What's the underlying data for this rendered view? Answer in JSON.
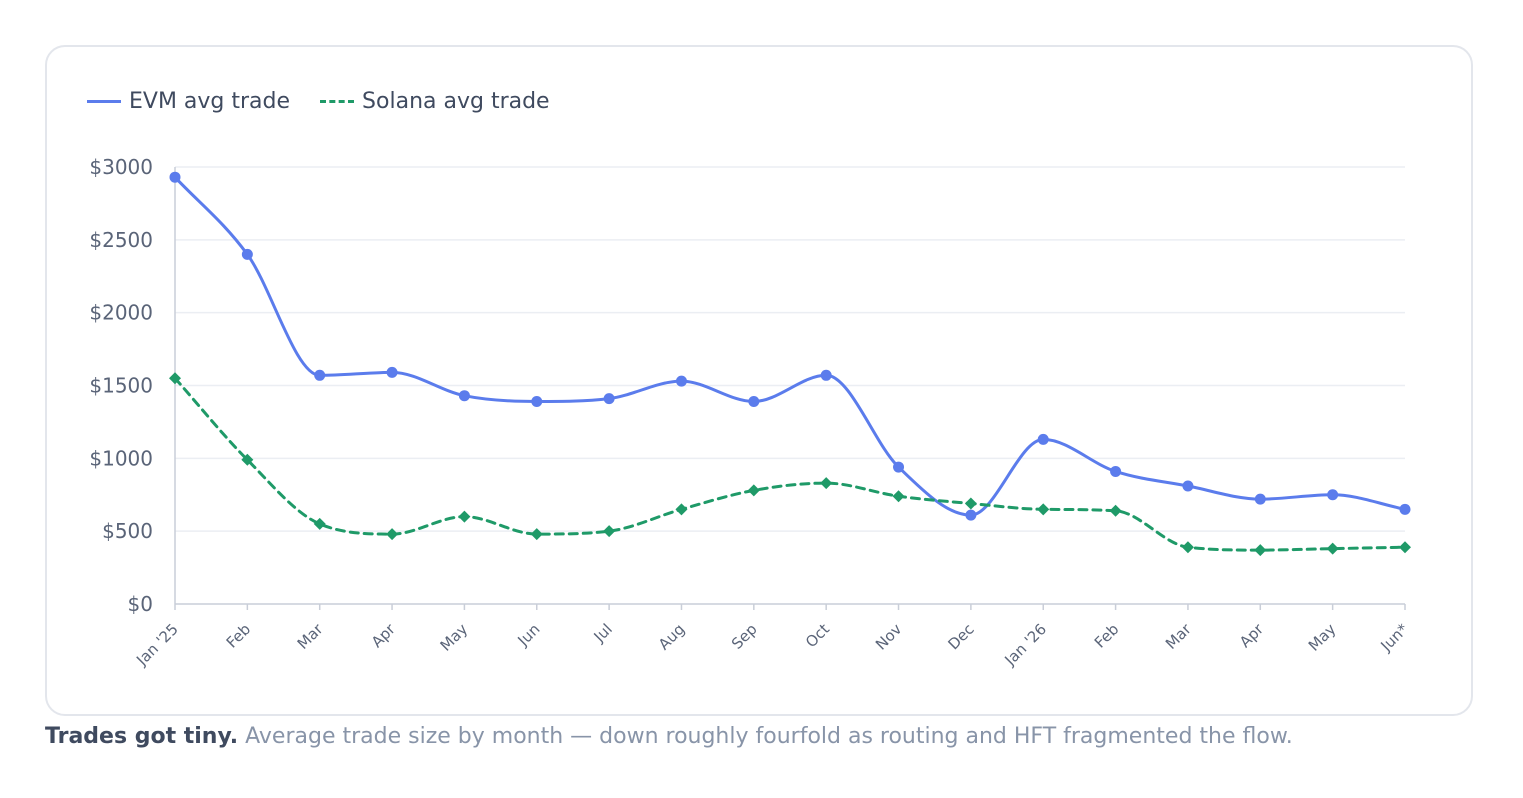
{
  "chart_data": {
    "type": "line",
    "title": "",
    "xlabel": "",
    "ylabel": "",
    "categories": [
      "Jan '25",
      "Feb",
      "Mar",
      "Apr",
      "May",
      "Jun",
      "Jul",
      "Aug",
      "Sep",
      "Oct",
      "Nov",
      "Dec",
      "Jan '26",
      "Feb",
      "Mar",
      "Apr",
      "May",
      "Jun*"
    ],
    "series": [
      {
        "name": "EVM avg trade",
        "color": "#5b7cec",
        "style": "solid",
        "marker": "circle",
        "values": [
          2930,
          2400,
          1570,
          1590,
          1430,
          1390,
          1410,
          1530,
          1390,
          1570,
          940,
          610,
          1130,
          910,
          810,
          720,
          750,
          650
        ]
      },
      {
        "name": "Solana avg trade",
        "color": "#1f9a68",
        "style": "dashed",
        "marker": "diamond",
        "values": [
          1550,
          990,
          550,
          480,
          600,
          480,
          500,
          650,
          780,
          830,
          740,
          690,
          650,
          640,
          390,
          370,
          380,
          390
        ]
      }
    ],
    "ylim": [
      0,
      3000
    ],
    "yticks": [
      0,
      500,
      1000,
      1500,
      2000,
      2500,
      3000
    ],
    "ytick_labels": [
      "$0",
      "$500",
      "$1000",
      "$1500",
      "$2000",
      "$2500",
      "$3000"
    ],
    "grid": true,
    "legend_position": "top-left"
  },
  "caption": {
    "lead": "Trades got tiny.",
    "text": " Average trade size by month — down roughly fourfold as routing and HFT fragmented the flow."
  },
  "colors": {
    "grid": "#ebeef3",
    "axis": "#c9ced8",
    "tick_text": "#5a6478"
  }
}
